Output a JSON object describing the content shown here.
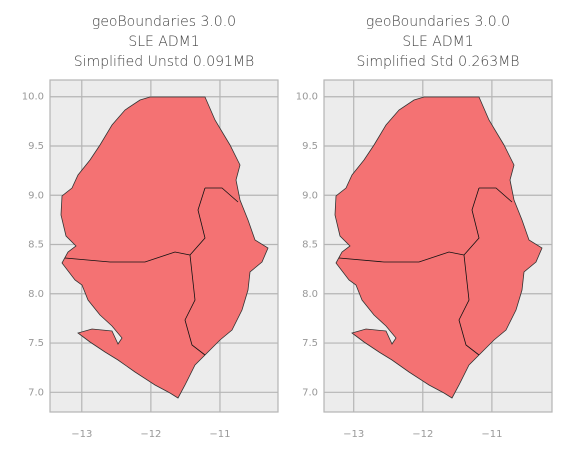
{
  "chart_data": [
    {
      "type": "map",
      "title": [
        "geoBoundaries 3.0.0",
        "SLE ADM1",
        "Simplified Unstd 0.091MB"
      ],
      "xlim": [
        -13.46,
        -10.16
      ],
      "ylim": [
        6.8,
        10.17
      ],
      "xticks": [
        {
          "value": -13,
          "label": "−13"
        },
        {
          "value": -12,
          "label": "−12"
        },
        {
          "value": -11,
          "label": "−11"
        }
      ],
      "yticks": [
        {
          "value": 7,
          "label": "7.0"
        },
        {
          "value": 7.5,
          "label": "7.5"
        },
        {
          "value": 8,
          "label": "8.0"
        },
        {
          "value": 8.5,
          "label": "8.5"
        },
        {
          "value": 9,
          "label": "9.0"
        },
        {
          "value": 9.5,
          "label": "9.5"
        },
        {
          "value": 10,
          "label": "10.0"
        }
      ],
      "color": "#f47273",
      "grid": true
    },
    {
      "type": "map",
      "title": [
        "geoBoundaries 3.0.0",
        "SLE ADM1",
        "Simplified Std 0.263MB"
      ],
      "xlim": [
        -13.43,
        -10.13
      ],
      "ylim": [
        6.8,
        10.17
      ],
      "xticks": [
        {
          "value": -13,
          "label": "−13"
        },
        {
          "value": -12,
          "label": "−12"
        },
        {
          "value": -11,
          "label": "−11"
        }
      ],
      "yticks": [
        {
          "value": 7,
          "label": "7.0"
        },
        {
          "value": 7.5,
          "label": "7.5"
        },
        {
          "value": 8,
          "label": "8.0"
        },
        {
          "value": 8.5,
          "label": "8.5"
        },
        {
          "value": 9,
          "label": "9.0"
        },
        {
          "value": 9.5,
          "label": "9.5"
        },
        {
          "value": 10,
          "label": "10.0"
        }
      ],
      "color": "#f47273",
      "grid": true
    }
  ]
}
